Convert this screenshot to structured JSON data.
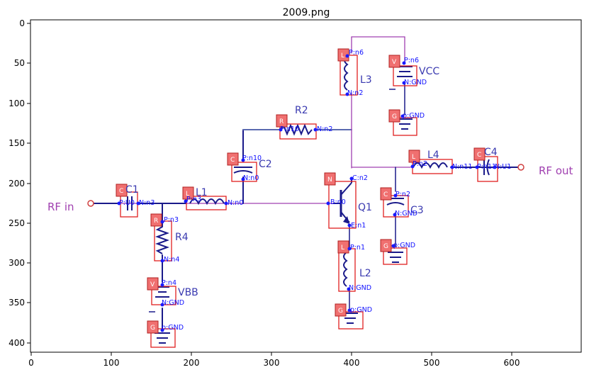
{
  "figure": {
    "title": "2009.png",
    "x_ticks": [
      "0",
      "100",
      "200",
      "300",
      "400",
      "500",
      "600"
    ],
    "y_ticks": [
      "0",
      "50",
      "100",
      "150",
      "200",
      "250",
      "300",
      "350",
      "400"
    ]
  },
  "ports": {
    "rf_in": "RF in",
    "rf_out": "RF out"
  },
  "components": {
    "C1": "C1",
    "L1": "L1",
    "R4": "R4",
    "VBB": "VBB",
    "C2": "C2",
    "R2": "R2",
    "L3": "L3",
    "VCC": "VCC",
    "Q1": "Q1",
    "L2": "L2",
    "L4": "L4",
    "C4": "C4",
    "C3": "C3"
  },
  "badges": {
    "c1": "C",
    "r4": "R",
    "v_vbb": "V",
    "g_vbb": "G",
    "l1": "L",
    "c2": "C",
    "r2": "R",
    "l3": "L",
    "v_vcc": "V",
    "g_vcc": "G",
    "n_q1": "N",
    "l2": "L",
    "g_l2": "G",
    "l4": "L",
    "c4": "C",
    "c3": "C",
    "g_c3": "G"
  },
  "nodes": {
    "c1_p": "P:U0",
    "c1_n": "N:n3",
    "r4_p": "P:n3",
    "r4_n": "N:n4",
    "vbb_p": "P:n4",
    "vbb_n": "N:GND",
    "vbb_g": "p:GND",
    "l1_p": "P:n3",
    "l1_n": "N:n0",
    "c2_p": "P:n10",
    "c2_n": "N:n0",
    "r2_p": "P:n10",
    "r2_n": "N:n2",
    "l3_p": "P:n6",
    "l3_n": "N:n2",
    "vcc_p": "P:n6",
    "vcc_n": "N:GND",
    "vcc_g": "p:GND",
    "q1_c": "C:n2",
    "q1_b": "B:n0",
    "q1_e": "E:n1",
    "l2_p": "P:n1",
    "l2_n": "N:GND",
    "l2_g": "p:GND",
    "l4_p": "P:n2",
    "l4_n": "N:n11",
    "c4_p": "P:n11",
    "c4_n": "N:U1",
    "c3_p": "P:n2",
    "c3_n": "N:GND",
    "c3_g": "p:GND"
  }
}
